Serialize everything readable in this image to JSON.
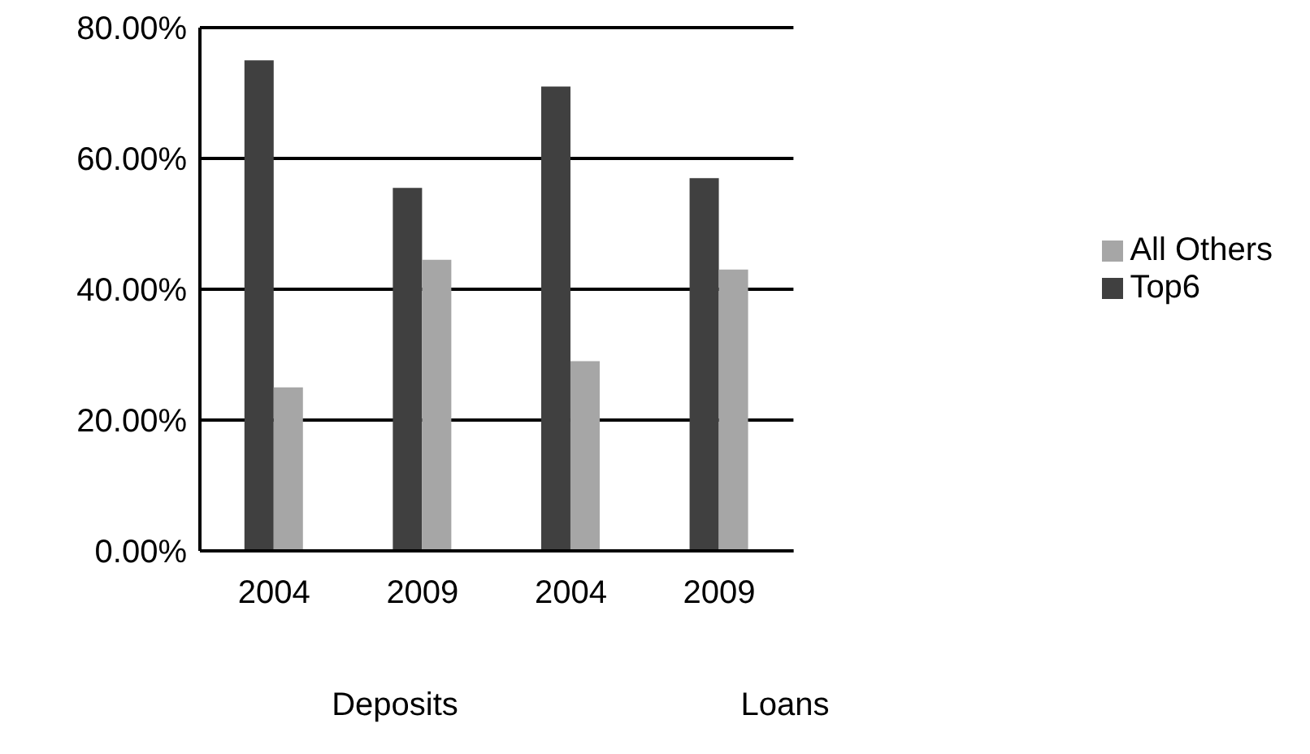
{
  "chart_data": {
    "type": "bar",
    "categories": [
      "2004",
      "2009",
      "2004",
      "2009"
    ],
    "series": [
      {
        "name": "Top6",
        "color": "#404040",
        "values": [
          75,
          55.5,
          71,
          57
        ]
      },
      {
        "name": "All Others",
        "color": "#a6a6a6",
        "values": [
          25,
          44.5,
          29,
          43
        ]
      }
    ],
    "ylim": [
      0,
      80
    ],
    "yticks": [
      {
        "value": 0,
        "label": "0.00%"
      },
      {
        "value": 20,
        "label": "20.00%"
      },
      {
        "value": 40,
        "label": "40.00%"
      },
      {
        "value": 60,
        "label": "60.00%"
      },
      {
        "value": 80,
        "label": "80.00%"
      }
    ],
    "grid": "y",
    "legend": "right",
    "annotations": [
      "Deposits",
      "Loans"
    ]
  }
}
